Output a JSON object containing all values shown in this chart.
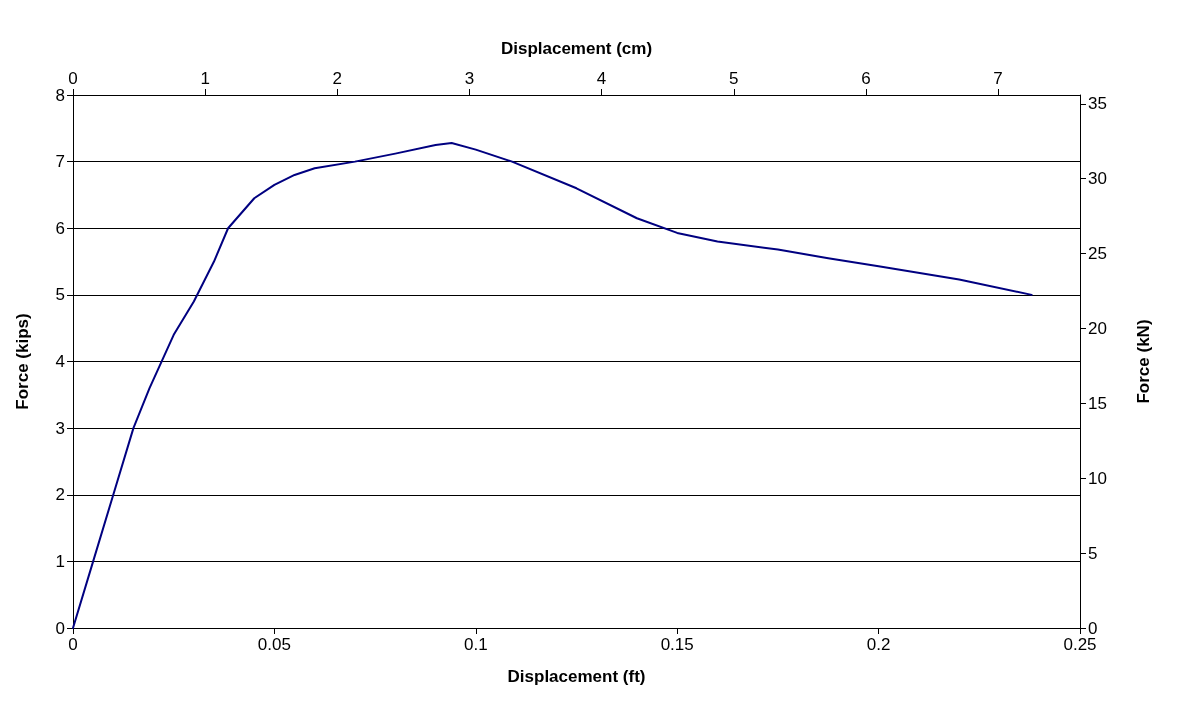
{
  "chart_data": {
    "type": "line",
    "xlabel": "Displacement (ft)",
    "x2label": "Displacement (cm)",
    "ylabel": "Force (kips)",
    "y2label": "Force (kN)",
    "xlim": [
      0,
      0.25
    ],
    "xticks": [
      0,
      0.05,
      0.1,
      0.15,
      0.2,
      0.25
    ],
    "x2lim": [
      0,
      7.62
    ],
    "x2ticks": [
      0,
      1,
      2,
      3,
      4,
      5,
      6,
      7
    ],
    "ylim": [
      0,
      8
    ],
    "yticks": [
      0,
      1,
      2,
      3,
      4,
      5,
      6,
      7,
      8
    ],
    "y2lim": [
      0,
      35.59
    ],
    "y2ticks": [
      0,
      5,
      10,
      15,
      20,
      25,
      30,
      35
    ],
    "grid": "y",
    "marker": "none",
    "line_style": "solid",
    "series": [
      {
        "color": "#000080",
        "x": [
          0,
          0.005,
          0.01,
          0.015,
          0.019,
          0.025,
          0.03,
          0.035,
          0.0385,
          0.045,
          0.05,
          0.055,
          0.06,
          0.07,
          0.08,
          0.09,
          0.094,
          0.1,
          0.109,
          0.125,
          0.14,
          0.15,
          0.16,
          0.175,
          0.1875,
          0.2,
          0.22,
          0.238
        ],
        "values": [
          0,
          1,
          2,
          3,
          3.6,
          4.4,
          4.9,
          5.5,
          6,
          6.45,
          6.65,
          6.8,
          6.9,
          7,
          7.12,
          7.25,
          7.28,
          7.18,
          7,
          6.6,
          6.15,
          5.93,
          5.8,
          5.68,
          5.55,
          5.43,
          5.23,
          5
        ]
      }
    ]
  }
}
